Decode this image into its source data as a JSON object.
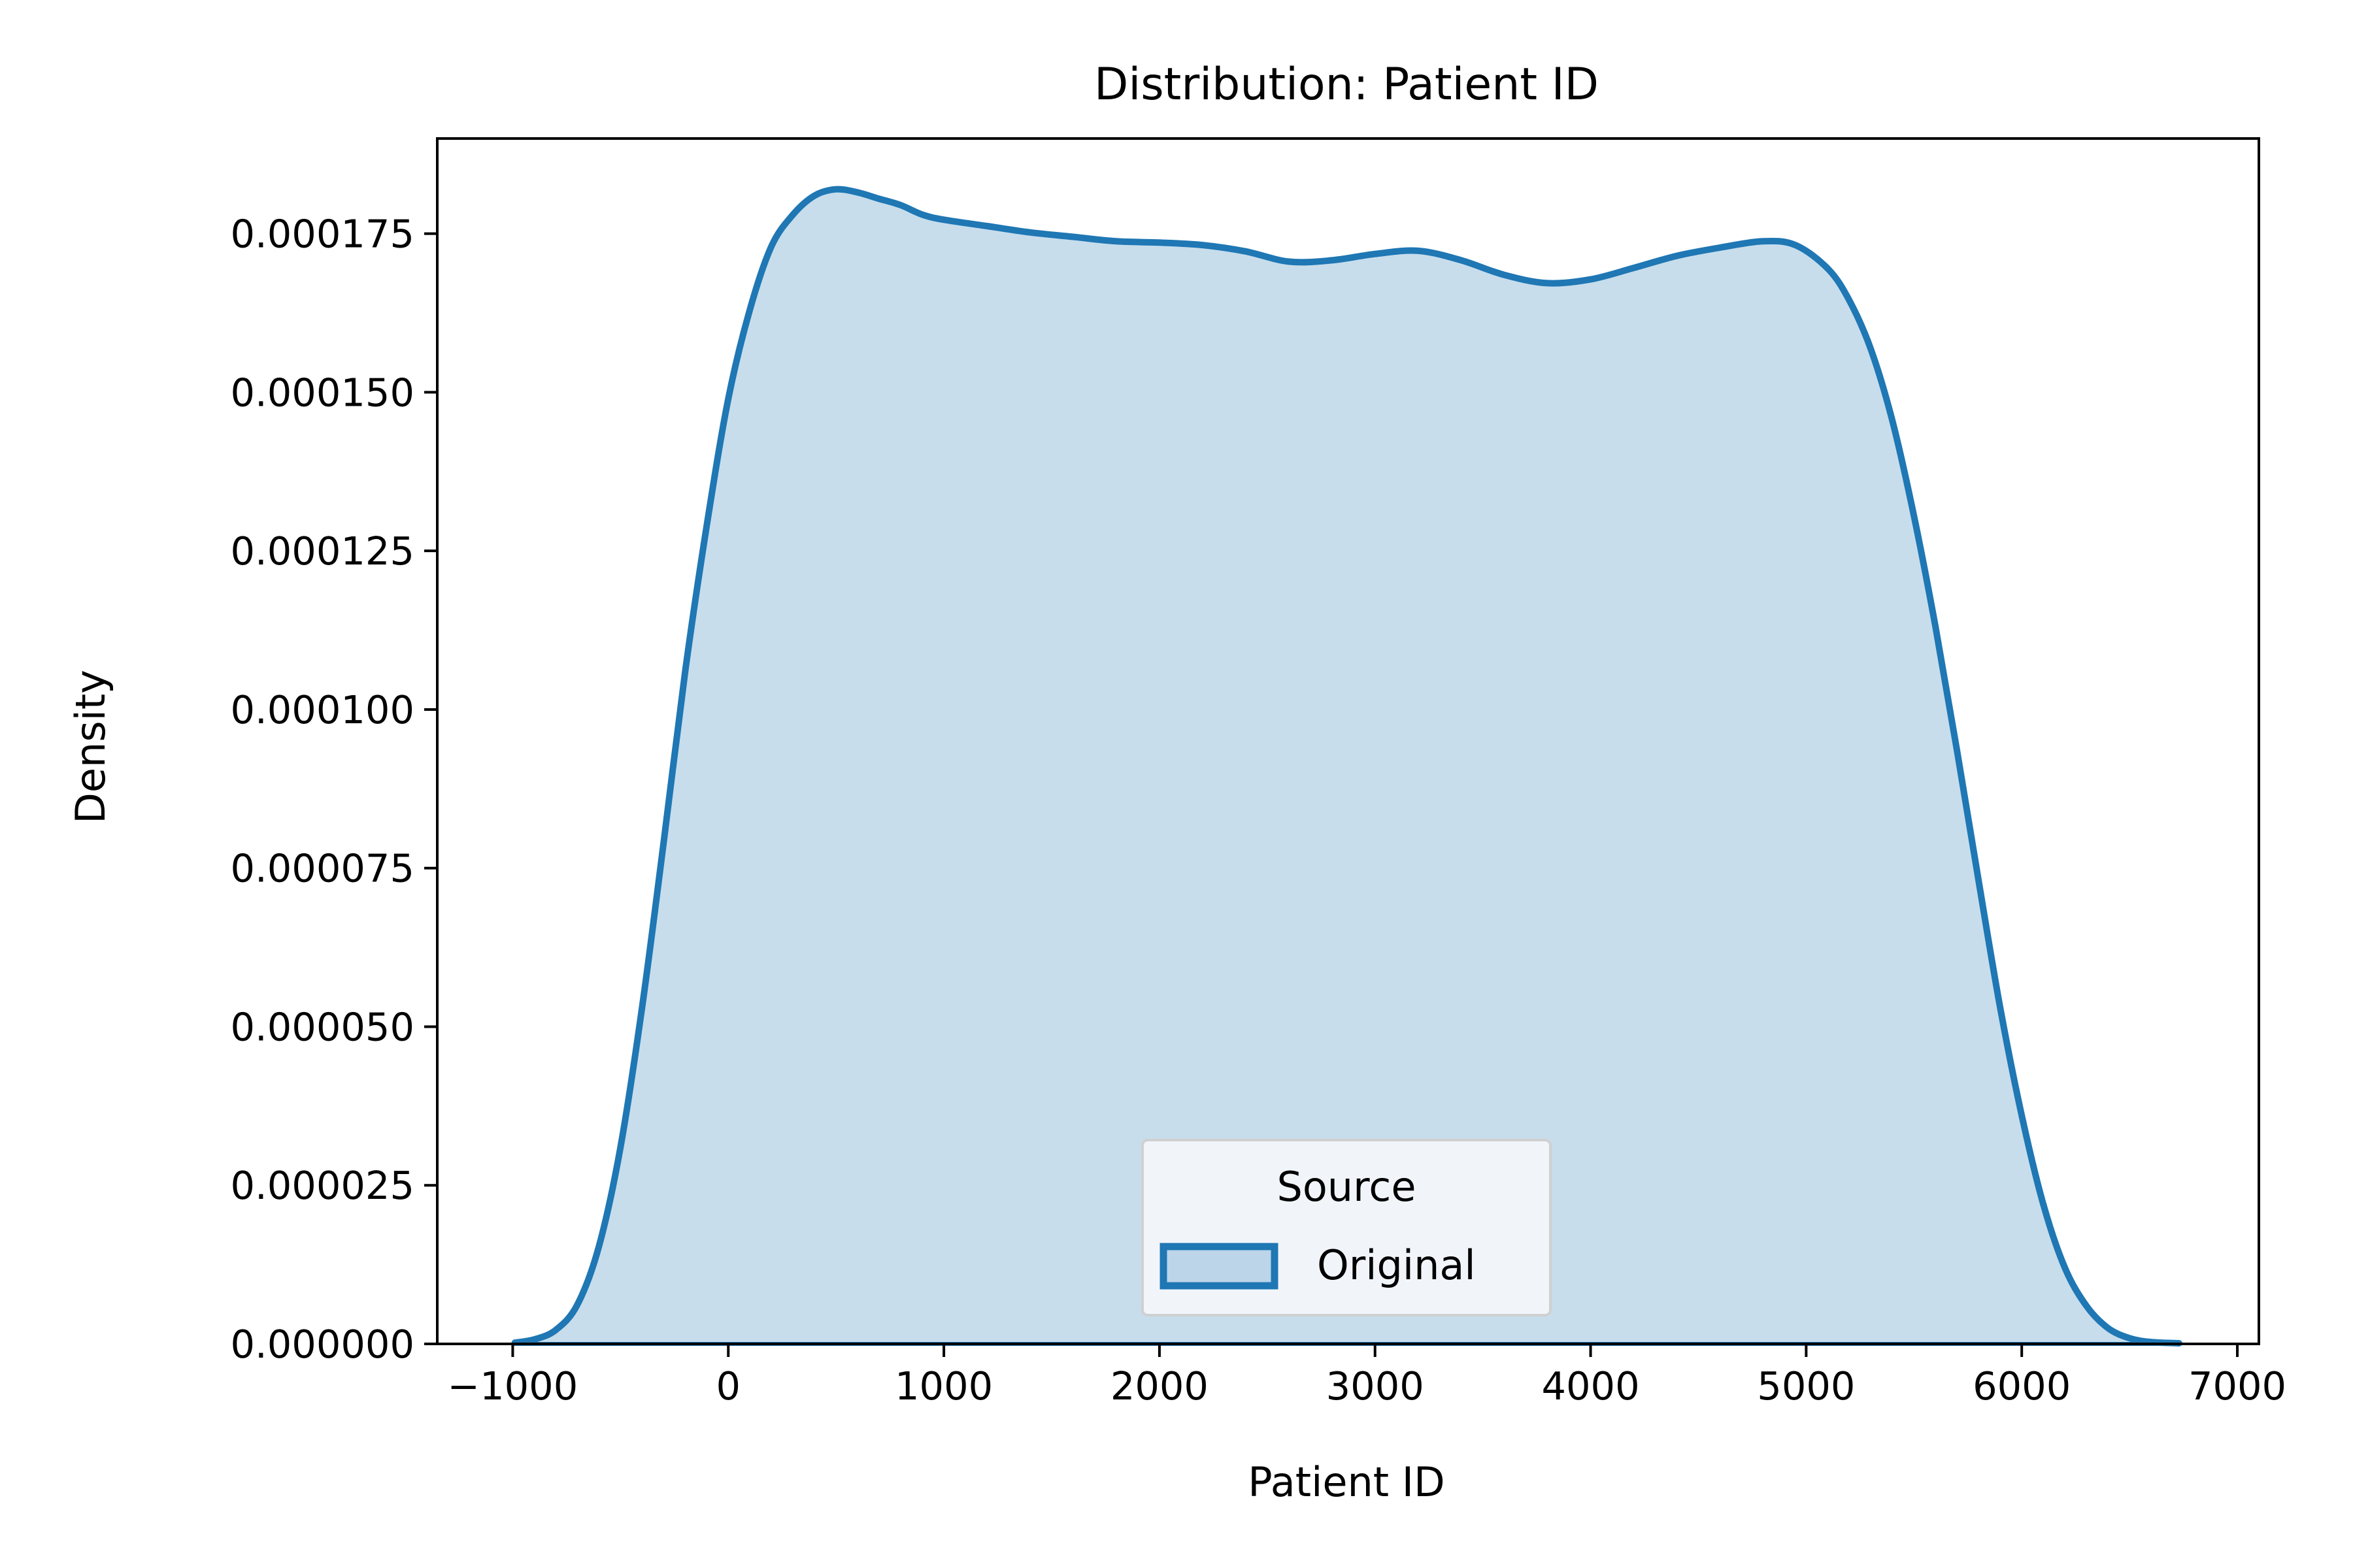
{
  "chart_data": {
    "type": "area",
    "title": "Distribution: Patient ID",
    "xlabel": "Patient ID",
    "ylabel": "Density",
    "xlim": [
      -1350,
      7100
    ],
    "ylim": [
      0,
      0.00019
    ],
    "xticks": [
      -1000,
      0,
      1000,
      2000,
      3000,
      4000,
      5000,
      6000,
      7000
    ],
    "xtick_labels": [
      "−1000",
      "0",
      "1000",
      "2000",
      "3000",
      "4000",
      "5000",
      "6000",
      "7000"
    ],
    "yticks": [
      0,
      2.5e-05,
      5e-05,
      7.5e-05,
      0.0001,
      0.000125,
      0.00015,
      0.000175
    ],
    "ytick_labels": [
      "0.000000",
      "0.000025",
      "0.000050",
      "0.000075",
      "0.000100",
      "0.000125",
      "0.000150",
      "0.000175"
    ],
    "grid": false,
    "legend": {
      "title": "Source",
      "placement": "lower center"
    },
    "series": [
      {
        "name": "Original",
        "color": "#1f77b4",
        "fill_color": "#1f77b4",
        "fill_opacity": 0.25,
        "x": [
          -990,
          -900,
          -800,
          -700,
          -600,
          -500,
          -400,
          -300,
          -200,
          -100,
          0,
          100,
          200,
          300,
          400,
          500,
          600,
          700,
          800,
          900,
          1000,
          1200,
          1400,
          1600,
          1800,
          2000,
          2200,
          2400,
          2600,
          2800,
          3000,
          3200,
          3400,
          3600,
          3800,
          4000,
          4200,
          4400,
          4600,
          4800,
          4950,
          5100,
          5200,
          5300,
          5400,
          5500,
          5600,
          5700,
          5800,
          5900,
          6000,
          6100,
          6200,
          6300,
          6400,
          6500,
          6600,
          6730
        ],
        "y": [
          2e-07,
          7e-07,
          2.2e-06,
          6.2e-06,
          1.54e-05,
          3.1e-05,
          5.3e-05,
          7.9e-05,
          0.000106,
          0.000129,
          0.000149,
          0.000163,
          0.000173,
          0.000178,
          0.000181,
          0.000182,
          0.0001815,
          0.0001805,
          0.0001795,
          0.000178,
          0.0001772,
          0.0001762,
          0.0001752,
          0.0001745,
          0.0001738,
          0.0001736,
          0.0001732,
          0.0001722,
          0.0001706,
          0.0001708,
          0.0001718,
          0.0001723,
          0.0001708,
          0.0001685,
          0.0001672,
          0.0001678,
          0.0001696,
          0.0001715,
          0.0001728,
          0.0001738,
          0.0001732,
          0.0001695,
          0.0001645,
          0.0001568,
          0.0001455,
          0.0001305,
          0.000113,
          9.35e-05,
          7.3e-05,
          5.3e-05,
          3.6e-05,
          2.2e-05,
          1.2e-05,
          6e-06,
          2.5e-06,
          9e-07,
          3e-07,
          1e-07
        ]
      }
    ]
  }
}
